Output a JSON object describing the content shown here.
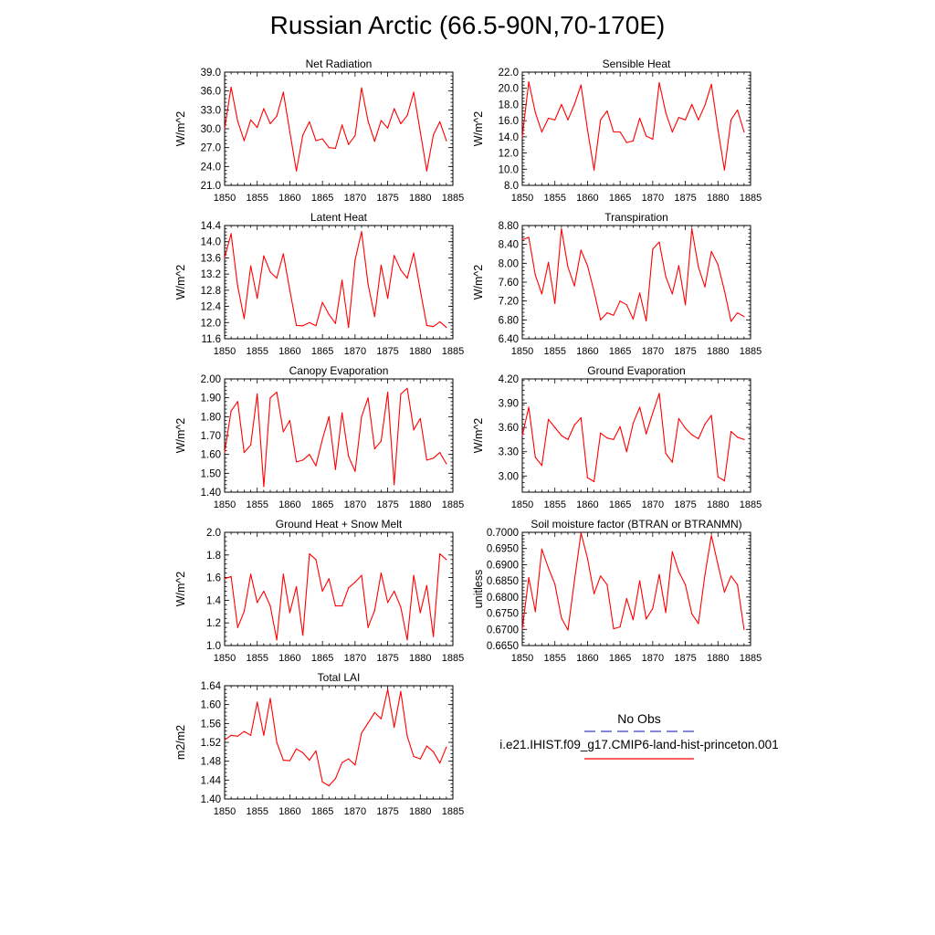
{
  "title": "Russian Arctic (66.5-90N,70-170E)",
  "colors": {
    "series": "#ff0000",
    "obs": "#3d3dbd",
    "axis": "#000000"
  },
  "legend": {
    "obs_label": "No Obs",
    "model_label": "i.e21.IHIST.f09_g17.CMIP6-land-hist-princeton.001"
  },
  "chart_data": [
    {
      "type": "line",
      "title": "Net Radiation",
      "ylabel": "W/m^2",
      "xlim": [
        1850,
        1885
      ],
      "ylim": [
        21.0,
        39.0
      ],
      "xticks": [
        1850,
        1855,
        1860,
        1865,
        1870,
        1875,
        1880,
        1885
      ],
      "yticks": [
        "21.0",
        "24.0",
        "27.0",
        "30.0",
        "33.0",
        "36.0",
        "39.0"
      ],
      "x": [
        1850,
        1851,
        1852,
        1853,
        1854,
        1855,
        1856,
        1857,
        1858,
        1859,
        1860,
        1861,
        1862,
        1863,
        1864,
        1865,
        1866,
        1867,
        1868,
        1869,
        1870,
        1871,
        1872,
        1873,
        1874,
        1875,
        1876,
        1877,
        1878,
        1879,
        1880,
        1881,
        1882,
        1883,
        1884
      ],
      "y": [
        30.0,
        36.6,
        31.2,
        28.1,
        31.4,
        30.2,
        33.2,
        30.8,
        32.0,
        35.8,
        29.5,
        23.3,
        29.0,
        31.1,
        28.1,
        28.4,
        27.0,
        26.9,
        30.6,
        27.5,
        28.9,
        36.5,
        31.2,
        28.0,
        31.3,
        30.1,
        33.2,
        30.8,
        32.1,
        35.8,
        29.5,
        23.3,
        29.0,
        31.1,
        28.1
      ]
    },
    {
      "type": "line",
      "title": "Sensible Heat",
      "ylabel": "W/m^2",
      "xlim": [
        1850,
        1885
      ],
      "ylim": [
        8.0,
        22.0
      ],
      "xticks": [
        1850,
        1855,
        1860,
        1865,
        1870,
        1875,
        1880,
        1885
      ],
      "yticks": [
        "8.0",
        "10.0",
        "12.0",
        "14.0",
        "16.0",
        "18.0",
        "20.0",
        "22.0"
      ],
      "x": [
        1850,
        1851,
        1852,
        1853,
        1854,
        1855,
        1856,
        1857,
        1858,
        1859,
        1860,
        1861,
        1862,
        1863,
        1864,
        1865,
        1866,
        1867,
        1868,
        1869,
        1870,
        1871,
        1872,
        1873,
        1874,
        1875,
        1876,
        1877,
        1878,
        1879,
        1880,
        1881,
        1882,
        1883,
        1884
      ],
      "y": [
        14.0,
        20.8,
        17.0,
        14.6,
        16.3,
        16.1,
        18.0,
        16.1,
        18.0,
        20.4,
        14.9,
        9.9,
        16.1,
        17.2,
        14.6,
        14.6,
        13.3,
        13.5,
        16.3,
        14.1,
        13.7,
        20.7,
        17.0,
        14.6,
        16.4,
        16.1,
        18.0,
        16.1,
        17.9,
        20.5,
        14.9,
        9.9,
        16.1,
        17.3,
        14.6
      ]
    },
    {
      "type": "line",
      "title": "Latent Heat",
      "ylabel": "W/m^2",
      "xlim": [
        1850,
        1885
      ],
      "ylim": [
        11.6,
        14.4
      ],
      "xticks": [
        1850,
        1855,
        1860,
        1865,
        1870,
        1875,
        1880,
        1885
      ],
      "yticks": [
        "11.6",
        "12.0",
        "12.4",
        "12.8",
        "13.2",
        "13.6",
        "14.0",
        "14.4"
      ],
      "x": [
        1850,
        1851,
        1852,
        1853,
        1854,
        1855,
        1856,
        1857,
        1858,
        1859,
        1860,
        1861,
        1862,
        1863,
        1864,
        1865,
        1866,
        1867,
        1868,
        1869,
        1870,
        1871,
        1872,
        1873,
        1874,
        1875,
        1876,
        1877,
        1878,
        1879,
        1880,
        1881,
        1882,
        1883,
        1884
      ],
      "y": [
        13.6,
        14.2,
        12.9,
        12.1,
        13.4,
        12.6,
        13.65,
        13.25,
        13.1,
        13.7,
        12.8,
        11.93,
        11.92,
        12.0,
        11.92,
        12.5,
        12.2,
        11.98,
        13.05,
        11.88,
        13.55,
        14.25,
        12.95,
        12.15,
        13.42,
        12.6,
        13.66,
        13.3,
        13.1,
        13.72,
        12.8,
        11.93,
        11.9,
        12.02,
        11.88
      ]
    },
    {
      "type": "line",
      "title": "Transpiration",
      "ylabel": "W/m^2",
      "xlim": [
        1850,
        1885
      ],
      "ylim": [
        6.4,
        8.8
      ],
      "xticks": [
        1850,
        1855,
        1860,
        1865,
        1870,
        1875,
        1880,
        1885
      ],
      "yticks": [
        "6.40",
        "6.80",
        "7.20",
        "7.60",
        "8.00",
        "8.40",
        "8.80"
      ],
      "x": [
        1850,
        1851,
        1852,
        1853,
        1854,
        1855,
        1856,
        1857,
        1858,
        1859,
        1860,
        1861,
        1862,
        1863,
        1864,
        1865,
        1866,
        1867,
        1868,
        1869,
        1870,
        1871,
        1872,
        1873,
        1874,
        1875,
        1876,
        1877,
        1878,
        1879,
        1880,
        1881,
        1882,
        1883,
        1884
      ],
      "y": [
        8.5,
        8.55,
        7.75,
        7.35,
        8.02,
        7.15,
        8.73,
        7.92,
        7.52,
        8.28,
        7.95,
        7.4,
        6.8,
        6.95,
        6.9,
        7.2,
        7.12,
        6.82,
        7.37,
        6.78,
        8.3,
        8.45,
        7.72,
        7.35,
        7.95,
        7.12,
        8.73,
        7.92,
        7.5,
        8.25,
        7.97,
        7.42,
        6.77,
        6.95,
        6.87
      ]
    },
    {
      "type": "line",
      "title": "Canopy Evaporation",
      "ylabel": "W/m^2",
      "xlim": [
        1850,
        1885
      ],
      "ylim": [
        1.4,
        2.0
      ],
      "xticks": [
        1850,
        1855,
        1860,
        1865,
        1870,
        1875,
        1880,
        1885
      ],
      "yticks": [
        "1.40",
        "1.50",
        "1.60",
        "1.70",
        "1.80",
        "1.90",
        "2.00"
      ],
      "x": [
        1850,
        1851,
        1852,
        1853,
        1854,
        1855,
        1856,
        1857,
        1858,
        1859,
        1860,
        1861,
        1862,
        1863,
        1864,
        1865,
        1866,
        1867,
        1868,
        1869,
        1870,
        1871,
        1872,
        1873,
        1874,
        1875,
        1876,
        1877,
        1878,
        1879,
        1880,
        1881,
        1882,
        1883,
        1884
      ],
      "y": [
        1.61,
        1.83,
        1.88,
        1.61,
        1.65,
        1.92,
        1.43,
        1.9,
        1.93,
        1.72,
        1.78,
        1.56,
        1.57,
        1.6,
        1.54,
        1.68,
        1.8,
        1.52,
        1.82,
        1.59,
        1.51,
        1.8,
        1.9,
        1.63,
        1.67,
        1.93,
        1.44,
        1.92,
        1.95,
        1.73,
        1.79,
        1.57,
        1.58,
        1.61,
        1.55
      ]
    },
    {
      "type": "line",
      "title": "Ground Evaporation",
      "ylabel": "W/m^2",
      "xlim": [
        1850,
        1885
      ],
      "ylim": [
        2.8,
        4.2
      ],
      "xticks": [
        1850,
        1855,
        1860,
        1865,
        1870,
        1875,
        1880,
        1885
      ],
      "yticks": [
        "3.00",
        "3.30",
        "3.60",
        "3.90",
        "4.20"
      ],
      "x": [
        1850,
        1851,
        1852,
        1853,
        1854,
        1855,
        1856,
        1857,
        1858,
        1859,
        1860,
        1861,
        1862,
        1863,
        1864,
        1865,
        1866,
        1867,
        1868,
        1869,
        1870,
        1871,
        1872,
        1873,
        1874,
        1875,
        1876,
        1877,
        1878,
        1879,
        1880,
        1881,
        1882,
        1883,
        1884
      ],
      "y": [
        3.5,
        3.85,
        3.23,
        3.13,
        3.7,
        3.6,
        3.5,
        3.45,
        3.63,
        3.72,
        2.98,
        2.93,
        3.53,
        3.47,
        3.45,
        3.61,
        3.3,
        3.65,
        3.85,
        3.52,
        3.78,
        4.02,
        3.28,
        3.17,
        3.71,
        3.59,
        3.51,
        3.46,
        3.64,
        3.75,
        2.99,
        2.94,
        3.55,
        3.48,
        3.45
      ]
    },
    {
      "type": "line",
      "title": "Ground Heat + Snow Melt",
      "ylabel": "W/m^2",
      "xlim": [
        1850,
        1885
      ],
      "ylim": [
        1.0,
        2.0
      ],
      "xticks": [
        1850,
        1855,
        1860,
        1865,
        1870,
        1875,
        1880,
        1885
      ],
      "yticks": [
        "1.0",
        "1.2",
        "1.4",
        "1.6",
        "1.8",
        "2.0"
      ],
      "x": [
        1850,
        1851,
        1852,
        1853,
        1854,
        1855,
        1856,
        1857,
        1858,
        1859,
        1860,
        1861,
        1862,
        1863,
        1864,
        1865,
        1866,
        1867,
        1868,
        1869,
        1870,
        1871,
        1872,
        1873,
        1874,
        1875,
        1876,
        1877,
        1878,
        1879,
        1880,
        1881,
        1882,
        1883,
        1884
      ],
      "y": [
        1.59,
        1.61,
        1.16,
        1.3,
        1.63,
        1.38,
        1.48,
        1.35,
        1.05,
        1.63,
        1.29,
        1.52,
        1.09,
        1.81,
        1.76,
        1.48,
        1.59,
        1.35,
        1.35,
        1.51,
        1.56,
        1.62,
        1.16,
        1.31,
        1.64,
        1.38,
        1.48,
        1.34,
        1.05,
        1.62,
        1.29,
        1.53,
        1.08,
        1.81,
        1.76
      ]
    },
    {
      "type": "line",
      "title": "Soil moisture factor (BTRAN or BTRANMN)",
      "ylabel": "unitless",
      "xlim": [
        1850,
        1885
      ],
      "ylim": [
        0.665,
        0.7
      ],
      "xticks": [
        1850,
        1855,
        1860,
        1865,
        1870,
        1875,
        1880,
        1885
      ],
      "yticks": [
        "0.6650",
        "0.6700",
        "0.6750",
        "0.6800",
        "0.6850",
        "0.6900",
        "0.6950",
        "0.7000"
      ],
      "x": [
        1850,
        1851,
        1852,
        1853,
        1854,
        1855,
        1856,
        1857,
        1858,
        1859,
        1860,
        1861,
        1862,
        1863,
        1864,
        1865,
        1866,
        1867,
        1868,
        1869,
        1870,
        1871,
        1872,
        1873,
        1874,
        1875,
        1876,
        1877,
        1878,
        1879,
        1880,
        1881,
        1882,
        1883,
        1884
      ],
      "y": [
        0.67,
        0.686,
        0.6755,
        0.6948,
        0.689,
        0.684,
        0.6735,
        0.6698,
        0.685,
        0.6998,
        0.692,
        0.681,
        0.6865,
        0.6838,
        0.6702,
        0.6708,
        0.6795,
        0.673,
        0.685,
        0.6732,
        0.6765,
        0.687,
        0.6752,
        0.694,
        0.6878,
        0.6838,
        0.6748,
        0.6718,
        0.6868,
        0.699,
        0.69,
        0.6815,
        0.6865,
        0.6838,
        0.67
      ]
    },
    {
      "type": "line",
      "title": "Total LAI",
      "ylabel": "m2/m2",
      "xlim": [
        1850,
        1885
      ],
      "ylim": [
        1.4,
        1.64
      ],
      "xticks": [
        1850,
        1855,
        1860,
        1865,
        1870,
        1875,
        1880,
        1885
      ],
      "yticks": [
        "1.40",
        "1.44",
        "1.48",
        "1.52",
        "1.56",
        "1.60",
        "1.64"
      ],
      "x": [
        1850,
        1851,
        1852,
        1853,
        1854,
        1855,
        1856,
        1857,
        1858,
        1859,
        1860,
        1861,
        1862,
        1863,
        1864,
        1865,
        1866,
        1867,
        1868,
        1869,
        1870,
        1871,
        1872,
        1873,
        1874,
        1875,
        1876,
        1877,
        1878,
        1879,
        1880,
        1881,
        1882,
        1883,
        1884
      ],
      "y": [
        1.525,
        1.535,
        1.533,
        1.543,
        1.535,
        1.605,
        1.535,
        1.613,
        1.52,
        1.482,
        1.481,
        1.506,
        1.498,
        1.482,
        1.502,
        1.436,
        1.428,
        1.443,
        1.477,
        1.485,
        1.472,
        1.54,
        1.561,
        1.583,
        1.57,
        1.632,
        1.552,
        1.628,
        1.533,
        1.49,
        1.485,
        1.512,
        1.5,
        1.476,
        1.51
      ]
    }
  ]
}
